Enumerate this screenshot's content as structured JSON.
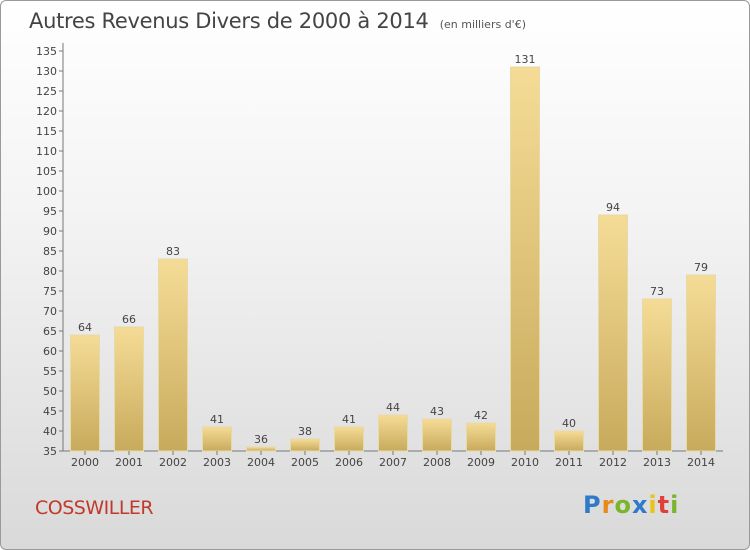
{
  "title": "Autres Revenus Divers de 2000 à 2014",
  "subtitle": "(en milliers d'€)",
  "commune": "COSSWILLER",
  "logo": {
    "p": "P",
    "r": "r",
    "o": "o",
    "x": "x",
    "i1": "i",
    "t": "t",
    "i2": "i"
  },
  "colors": {
    "bar_top": "#f5dc96",
    "bar_bottom": "#c8aa5c",
    "bar_stroke": "#e8d9a8",
    "commune": "#c0392b"
  },
  "chart_data": {
    "type": "bar",
    "categories": [
      "2000",
      "2001",
      "2002",
      "2003",
      "2004",
      "2005",
      "2006",
      "2007",
      "2008",
      "2009",
      "2010",
      "2011",
      "2012",
      "2013",
      "2014"
    ],
    "values": [
      64,
      66,
      83,
      41,
      36,
      38,
      41,
      44,
      43,
      42,
      131,
      40,
      94,
      73,
      79
    ],
    "ylim": [
      35,
      135
    ],
    "ytick_step": 5,
    "grid": false,
    "data_labels": true
  }
}
